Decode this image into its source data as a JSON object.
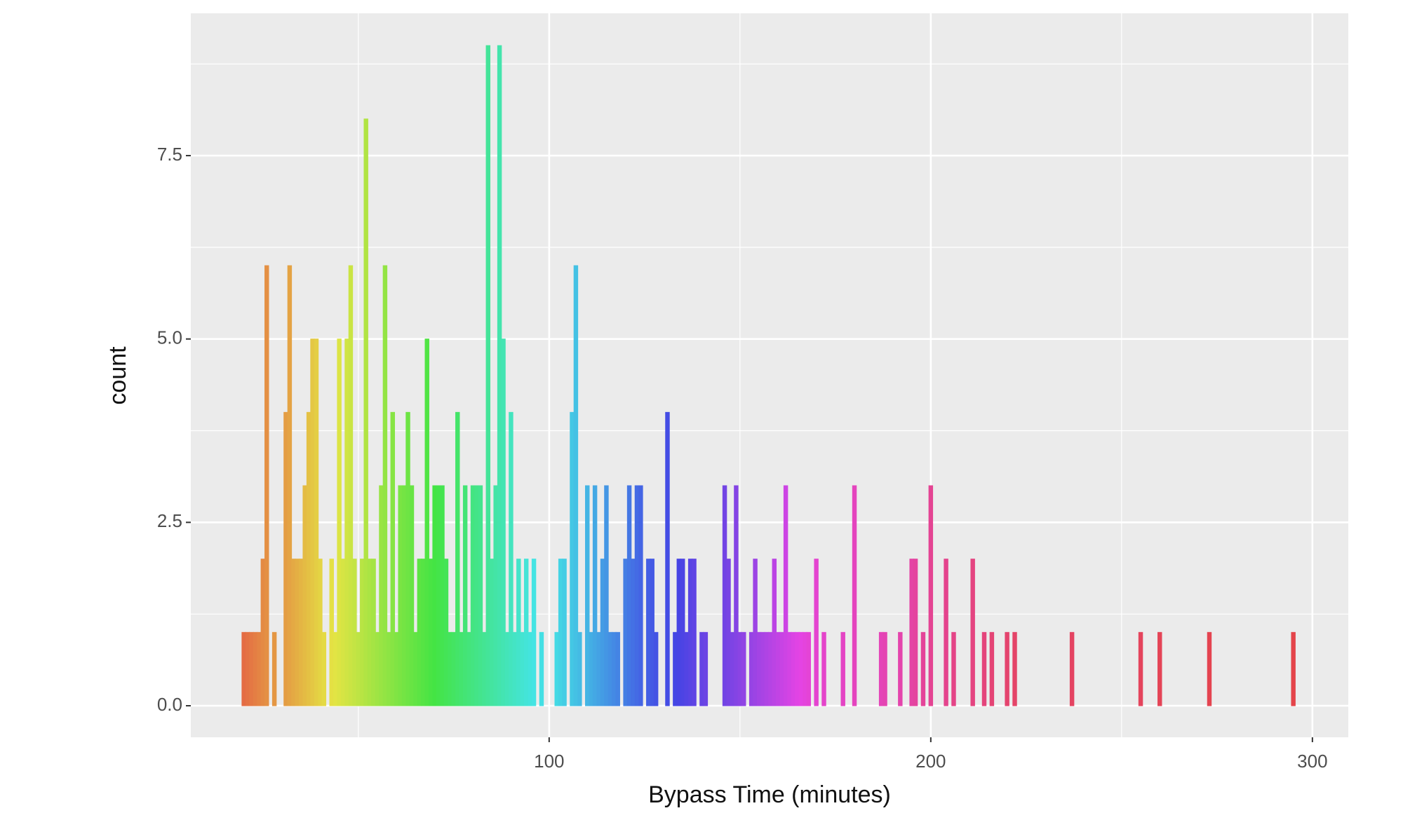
{
  "chart_data": {
    "type": "histogram",
    "x_label": "Bypass Time (minutes)",
    "y_label": "count",
    "x": [
      20,
      21,
      22,
      23,
      24,
      25,
      26,
      28,
      31,
      32,
      33,
      34,
      35,
      36,
      37,
      38,
      39,
      40,
      41,
      43,
      44,
      45,
      46,
      47,
      48,
      49,
      50,
      51,
      52,
      53,
      54,
      55,
      56,
      57,
      58,
      59,
      60,
      61,
      62,
      63,
      64,
      65,
      66,
      67,
      68,
      69,
      70,
      71,
      72,
      73,
      74,
      75,
      76,
      77,
      78,
      79,
      80,
      81,
      82,
      83,
      84,
      85,
      86,
      87,
      88,
      89,
      90,
      91,
      92,
      93,
      94,
      95,
      96,
      98,
      102,
      103,
      104,
      106,
      107,
      108,
      110,
      111,
      112,
      113,
      114,
      115,
      116,
      117,
      118,
      120,
      121,
      122,
      123,
      124,
      126,
      127,
      128,
      131,
      133,
      134,
      135,
      136,
      137,
      138,
      140,
      141,
      146,
      147,
      148,
      149,
      150,
      151,
      153,
      154,
      155,
      156,
      157,
      158,
      159,
      160,
      161,
      162,
      163,
      164,
      165,
      166,
      167,
      168,
      170,
      172,
      177,
      180,
      187,
      188,
      192,
      195,
      196,
      198,
      200,
      204,
      206,
      211,
      214,
      216,
      220,
      222,
      237,
      255,
      260,
      273,
      295
    ],
    "values": [
      1,
      1,
      1,
      1,
      1,
      2,
      6,
      1,
      4,
      6,
      2,
      2,
      2,
      3,
      4,
      5,
      5,
      2,
      1,
      2,
      1,
      5,
      2,
      5,
      6,
      2,
      1,
      2,
      8,
      2,
      2,
      1,
      3,
      6,
      1,
      4,
      1,
      3,
      3,
      4,
      3,
      1,
      2,
      2,
      5,
      2,
      3,
      3,
      3,
      2,
      1,
      1,
      4,
      1,
      3,
      1,
      3,
      3,
      3,
      1,
      9,
      2,
      3,
      9,
      5,
      1,
      4,
      1,
      2,
      1,
      2,
      1,
      2,
      1,
      1,
      2,
      2,
      4,
      6,
      1,
      3,
      1,
      3,
      1,
      2,
      3,
      1,
      1,
      1,
      2,
      3,
      2,
      3,
      3,
      2,
      2,
      1,
      4,
      1,
      2,
      2,
      1,
      2,
      2,
      1,
      1,
      3,
      2,
      1,
      3,
      1,
      1,
      1,
      2,
      1,
      1,
      1,
      1,
      2,
      1,
      1,
      3,
      1,
      1,
      1,
      1,
      1,
      1,
      2,
      1,
      1,
      3,
      1,
      1,
      1,
      2,
      2,
      1,
      3,
      2,
      1,
      2,
      1,
      1,
      1,
      1,
      1,
      1,
      1,
      1,
      1
    ],
    "xlim": [
      6.1,
      309.4
    ],
    "ylim": [
      -0.43,
      9.44
    ],
    "xticks": [
      100,
      200,
      300
    ],
    "yticks": [
      {
        "value": 0,
        "label": "0.0"
      },
      2.5,
      {
        "value": 5,
        "label": "5.0"
      },
      7.5
    ],
    "x_minor_grid": [
      50,
      150,
      250
    ],
    "y_minor_grid": [
      1.25,
      3.75,
      6.25,
      8.75
    ],
    "grid": true
  }
}
